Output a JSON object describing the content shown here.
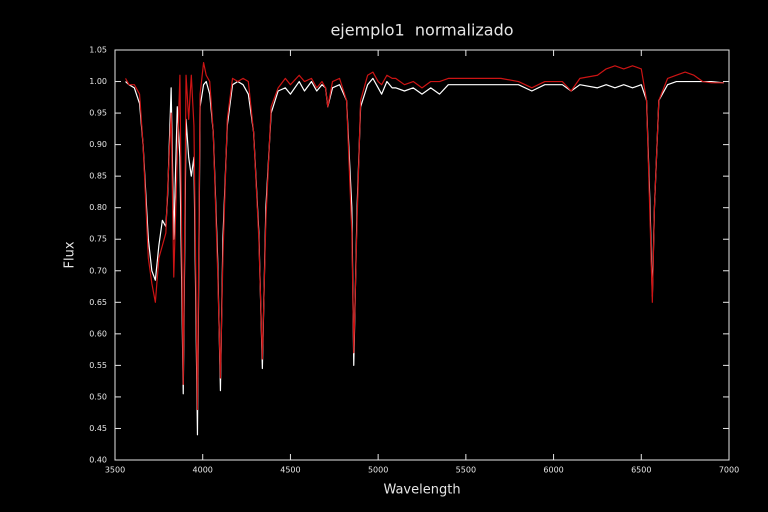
{
  "chart_data": {
    "type": "line",
    "title": "ejemplo1  normalizado",
    "xlabel": "Wavelength",
    "ylabel": "Flux",
    "x": [
      3560,
      3580,
      3610,
      3640,
      3660,
      3690,
      3710,
      3730,
      3750,
      3770,
      3790,
      3800,
      3820,
      3835,
      3855,
      3870,
      3889,
      3905,
      3920,
      3935,
      3950,
      3970,
      3985,
      4005,
      4020,
      4040,
      4060,
      4085,
      4101,
      4115,
      4140,
      4170,
      4200,
      4230,
      4260,
      4290,
      4320,
      4340,
      4360,
      4390,
      4430,
      4471,
      4500,
      4550,
      4580,
      4620,
      4650,
      4680,
      4700,
      4713,
      4740,
      4780,
      4820,
      4850,
      4861,
      4880,
      4900,
      4940,
      4970,
      5000,
      5020,
      5050,
      5080,
      5100,
      5150,
      5200,
      5250,
      5300,
      5350,
      5400,
      5500,
      5600,
      5700,
      5800,
      5876,
      5950,
      6050,
      6100,
      6150,
      6250,
      6300,
      6350,
      6400,
      6450,
      6500,
      6530,
      6550,
      6563,
      6575,
      6600,
      6650,
      6700,
      6750,
      6800,
      6850,
      6900,
      6970
    ],
    "series": [
      {
        "color": "#ffffff",
        "values": [
          1.0,
          0.995,
          0.99,
          0.965,
          0.9,
          0.75,
          0.7,
          0.685,
          0.74,
          0.78,
          0.77,
          0.82,
          0.99,
          0.75,
          0.96,
          0.88,
          0.505,
          0.94,
          0.88,
          0.85,
          0.88,
          0.44,
          0.96,
          0.995,
          1.0,
          0.98,
          0.92,
          0.72,
          0.51,
          0.75,
          0.93,
          0.995,
          1.0,
          0.995,
          0.98,
          0.92,
          0.76,
          0.545,
          0.8,
          0.95,
          0.985,
          0.99,
          0.98,
          1.0,
          0.985,
          1.0,
          0.985,
          0.995,
          0.99,
          0.96,
          0.99,
          0.995,
          0.97,
          0.8,
          0.55,
          0.8,
          0.96,
          0.995,
          1.005,
          0.99,
          0.98,
          1.0,
          0.99,
          0.99,
          0.985,
          0.99,
          0.98,
          0.99,
          0.98,
          0.995,
          0.995,
          0.995,
          0.995,
          0.995,
          0.985,
          0.995,
          0.995,
          0.985,
          0.995,
          0.99,
          0.995,
          0.99,
          0.995,
          0.99,
          0.995,
          0.97,
          0.8,
          0.66,
          0.8,
          0.97,
          0.995,
          1.0,
          1.0,
          1.0,
          1.0,
          1.0,
          0.998
        ]
      },
      {
        "color": "#cc1414",
        "values": [
          1.005,
          0.995,
          0.995,
          0.98,
          0.9,
          0.72,
          0.68,
          0.65,
          0.72,
          0.74,
          0.76,
          0.83,
          0.95,
          0.69,
          0.88,
          1.01,
          0.52,
          1.01,
          0.94,
          1.01,
          0.93,
          0.48,
          0.98,
          1.03,
          1.01,
          1.0,
          0.92,
          0.7,
          0.53,
          0.72,
          0.94,
          1.005,
          1.0,
          1.005,
          1.0,
          0.92,
          0.75,
          0.56,
          0.78,
          0.96,
          0.99,
          1.005,
          0.995,
          1.01,
          1.0,
          1.005,
          0.99,
          1.0,
          0.99,
          0.96,
          1.0,
          1.005,
          0.97,
          0.76,
          0.57,
          0.78,
          0.97,
          1.01,
          1.015,
          1.0,
          0.995,
          1.01,
          1.005,
          1.005,
          0.995,
          1.0,
          0.99,
          1.0,
          1.0,
          1.005,
          1.005,
          1.005,
          1.005,
          1.0,
          0.99,
          1.0,
          1.0,
          0.985,
          1.005,
          1.01,
          1.02,
          1.025,
          1.02,
          1.025,
          1.02,
          0.97,
          0.78,
          0.65,
          0.8,
          0.97,
          1.005,
          1.01,
          1.015,
          1.01,
          1.0,
          0.998,
          0.998
        ]
      }
    ],
    "xlim": [
      3500,
      7000
    ],
    "xticks": [
      3500,
      4000,
      4500,
      5000,
      5500,
      6000,
      6500,
      7000
    ],
    "ylim": [
      0.4,
      1.05
    ],
    "yticks": [
      {
        "value": 0.4,
        "label": "0.40"
      },
      0.45,
      {
        "value": 0.5,
        "label": "0.50"
      },
      0.55,
      {
        "value": 0.6,
        "label": "0.60"
      },
      0.65,
      {
        "value": 0.7,
        "label": "0.70"
      },
      0.75,
      {
        "value": 0.8,
        "label": "0.80"
      },
      0.85,
      {
        "value": 0.9,
        "label": "0.90"
      },
      0.95,
      {
        "value": 1.0,
        "label": "1.00"
      },
      1.05
    ],
    "grid": false
  }
}
